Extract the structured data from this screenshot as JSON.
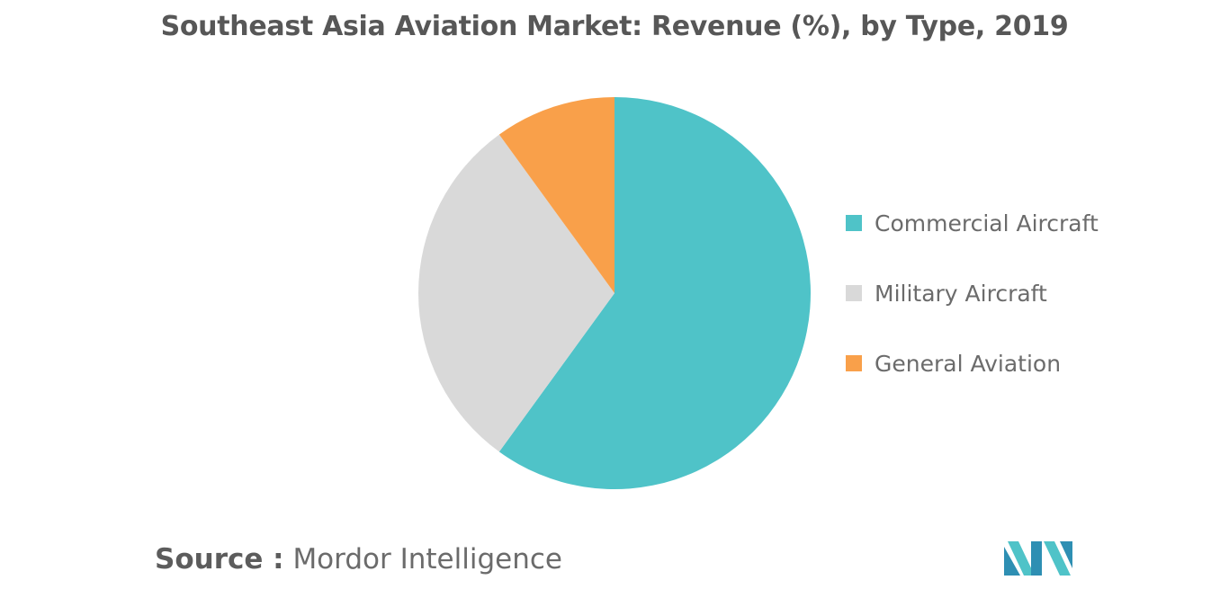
{
  "chart_data": {
    "type": "pie",
    "title": "Southeast Asia Aviation Market: Revenue (%), by Type, 2019",
    "categories": [
      "Commercial Aircraft",
      "Military Aircraft",
      "General Aviation"
    ],
    "values": [
      60,
      30,
      10
    ],
    "colors": [
      "#4fc3c8",
      "#d9d9d9",
      "#f9a04a"
    ],
    "start_angle_deg": 0,
    "direction": "clockwise",
    "legend_position": "right"
  },
  "source": {
    "prefix": "Source :",
    "text": "Mordor Intelligence"
  },
  "logo": {
    "name": "mordor-intelligence-logo",
    "colors": [
      "#2e8fb3",
      "#4fc3c8"
    ]
  }
}
